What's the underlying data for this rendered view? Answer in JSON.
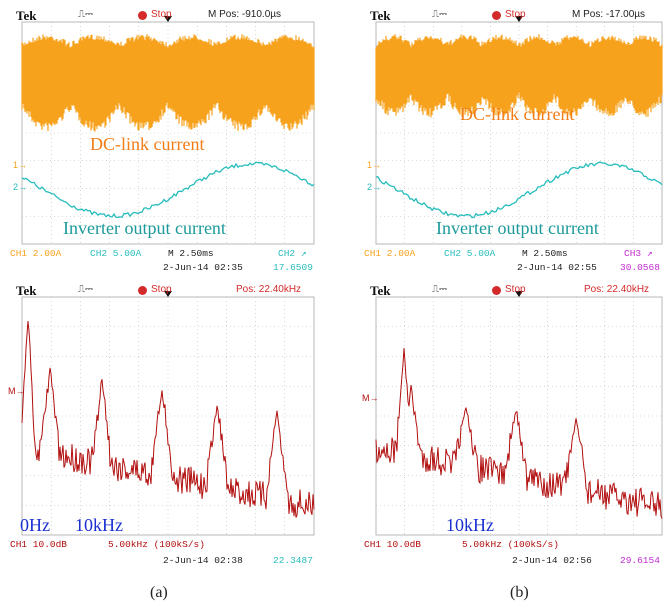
{
  "colors": {
    "ch1": "#f7a21d",
    "ch2": "#27bcbc",
    "fft": "#b20f0f",
    "label_orange": "#f27d17",
    "label_teal": "#1c9a9a",
    "label_blue": "#1a2fd0",
    "grid": "#b9b9b9",
    "stop": "#d42a2a",
    "ch3": "#c12ad0"
  },
  "panels": {
    "a_time": {
      "brand": "Tek",
      "trigger_symbol": "⎍⎓",
      "stop": "Stop",
      "position": "M Pos: -910.0µs",
      "label_top": "DC-link current",
      "label_bottom": "Inverter output current",
      "marker_1": "1→",
      "marker_2": "2→",
      "footer": {
        "ch1": "CH1  2.00A",
        "ch2": "CH2  5.00A",
        "timebase": "M 2.50ms",
        "trig_ch": "CH2 ↗",
        "date": "2-Jun-14 02:35",
        "freq": "17.6509"
      }
    },
    "b_time": {
      "brand": "Tek",
      "trigger_symbol": "⎍⎓",
      "stop": "Stop",
      "position": "M Pos: -17.00µs",
      "label_top": "DC-link current",
      "label_bottom": "Inverter output current",
      "marker_1": "1→",
      "marker_2": "2→",
      "footer": {
        "ch1": "CH1  2.00A",
        "ch2": "CH2  5.00A",
        "timebase": "M 2.50ms",
        "trig_ch": "CH3 ↗",
        "date": "2-Jun-14 02:55",
        "freq": "30.0568"
      }
    },
    "a_fft": {
      "brand": "Tek",
      "trigger_symbol": "⎍⎓",
      "stop": "Stop",
      "position": "Pos: 22.40kHz",
      "marker_m": "M→",
      "label_0hz": "0Hz",
      "label_10khz": "10kHz",
      "footer": {
        "ch1": "CH1 10.0dB",
        "span": "5.00kHz (100kS/s)",
        "date": "2-Jun-14 02:38",
        "freq": "22.3487"
      }
    },
    "b_fft": {
      "brand": "Tek",
      "trigger_symbol": "⎍⎓",
      "stop": "Stop",
      "position": "Pos: 22.40kHz",
      "marker_m": "M→",
      "label_10khz": "10kHz",
      "footer": {
        "ch1": "CH1 10.0dB",
        "span": "5.00kHz (100kS/s)",
        "date": "2-Jun-14 02:56",
        "freq": "29.6154"
      }
    }
  },
  "captions": {
    "a": "(a)",
    "b": "(b)"
  }
}
